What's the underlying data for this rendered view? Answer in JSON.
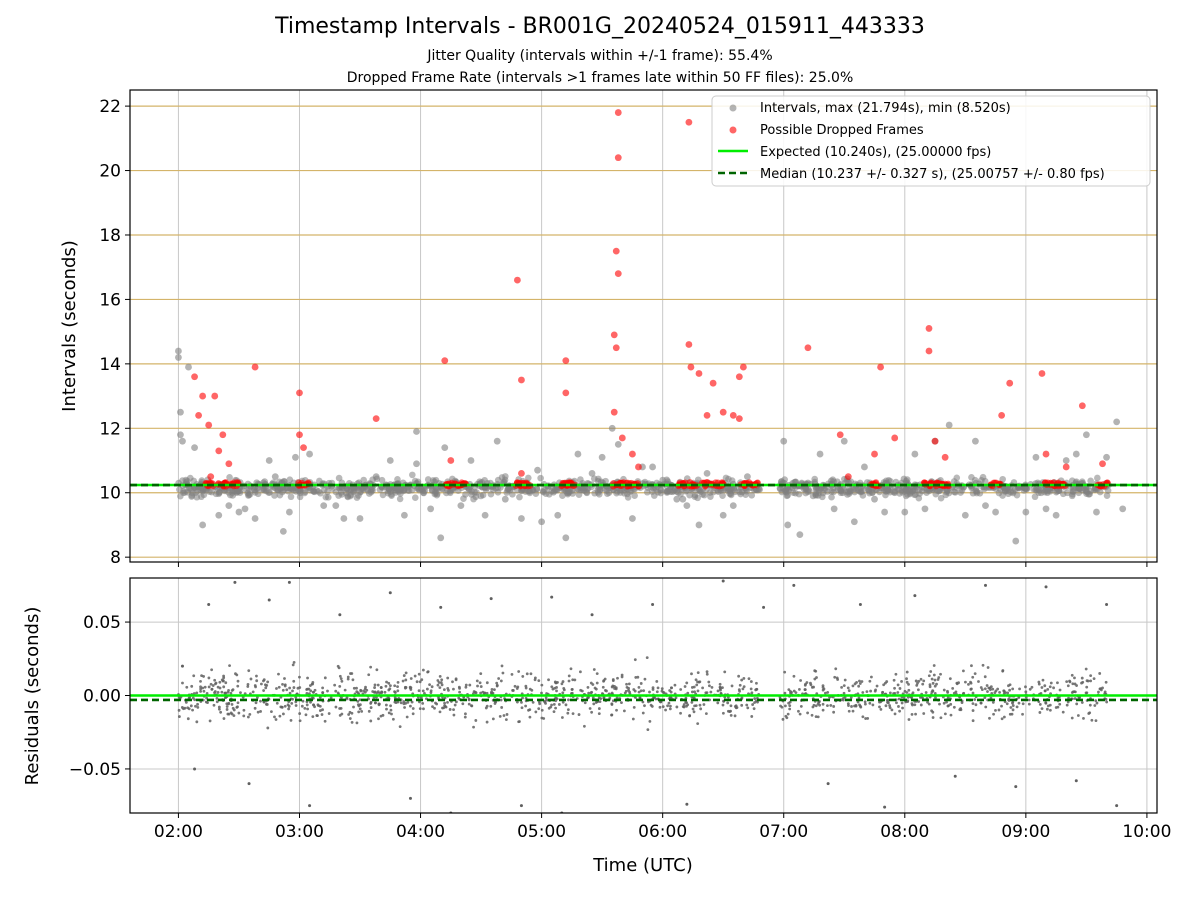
{
  "figure": {
    "title": "Timestamp Intervals - BR001G_20240524_015911_443333",
    "subtitle_1": "Jitter Quality (intervals within +/-1 frame): 55.4%",
    "subtitle_2": "Dropped Frame Rate (intervals >1 frames late within 50 FF files): 25.0%"
  },
  "colors": {
    "intervals": "#808080",
    "dropped": "#ff0000",
    "expected": "#00ee00",
    "median": "#006400",
    "hgrid_top": "#d4b46a",
    "grid": "#c8c8c8"
  },
  "chart_data": [
    {
      "type": "scatter",
      "ylabel": "Intervals (seconds)",
      "xlim": [
        "01:36",
        "10:05"
      ],
      "ylim": [
        7.85,
        22.5
      ],
      "yticks": [
        8,
        10,
        12,
        14,
        16,
        18,
        20,
        22
      ],
      "ytick_labels": [
        "8",
        "10",
        "12",
        "14",
        "16",
        "18",
        "20",
        "22"
      ],
      "grid": true,
      "legend_position": "top-right",
      "legend": [
        "Intervals, max (21.794s), min (8.520s)",
        "Possible Dropped Frames",
        "Expected (10.240s), (25.00000 fps)",
        "Median (10.237 +/- 0.327 s), (25.00757 +/- 0.80 fps)"
      ],
      "series": [
        {
          "name": "Intervals, max (21.794s), min (8.520s)",
          "style": "points",
          "points": [
            [
              "02:00",
              14.4
            ],
            [
              "02:00",
              14.2
            ],
            [
              "02:01",
              12.5
            ],
            [
              "02:01",
              11.8
            ],
            [
              "02:02",
              11.6
            ],
            [
              "02:05",
              13.9
            ],
            [
              "02:08",
              11.4
            ],
            [
              "02:12",
              9.0
            ],
            [
              "02:20",
              9.3
            ],
            [
              "02:25",
              9.6
            ],
            [
              "02:30",
              9.4
            ],
            [
              "02:33",
              9.5
            ],
            [
              "02:38",
              9.2
            ],
            [
              "02:45",
              11.0
            ],
            [
              "02:48",
              10.5
            ],
            [
              "02:52",
              8.8
            ],
            [
              "02:55",
              9.4
            ],
            [
              "02:58",
              11.1
            ],
            [
              "03:05",
              11.2
            ],
            [
              "03:12",
              9.6
            ],
            [
              "03:18",
              9.6
            ],
            [
              "03:22",
              9.2
            ],
            [
              "03:30",
              9.2
            ],
            [
              "03:38",
              10.5
            ],
            [
              "03:45",
              11.0
            ],
            [
              "03:52",
              9.3
            ],
            [
              "03:58",
              10.9
            ],
            [
              "03:58",
              11.9
            ],
            [
              "04:05",
              9.5
            ],
            [
              "04:10",
              8.6
            ],
            [
              "04:12",
              11.4
            ],
            [
              "04:20",
              9.6
            ],
            [
              "04:25",
              11.0
            ],
            [
              "04:32",
              9.3
            ],
            [
              "04:38",
              11.6
            ],
            [
              "04:42",
              9.8
            ],
            [
              "04:50",
              9.2
            ],
            [
              "04:58",
              10.7
            ],
            [
              "05:00",
              9.1
            ],
            [
              "05:08",
              9.3
            ],
            [
              "05:12",
              8.6
            ],
            [
              "05:18",
              11.2
            ],
            [
              "05:25",
              10.6
            ],
            [
              "05:30",
              11.1
            ],
            [
              "05:35",
              12.0
            ],
            [
              "05:38",
              11.5
            ],
            [
              "05:45",
              9.2
            ],
            [
              "05:50",
              10.8
            ],
            [
              "05:55",
              10.8
            ],
            [
              "06:02",
              10.4
            ],
            [
              "06:07",
              9.8
            ],
            [
              "06:10",
              9.8
            ],
            [
              "06:12",
              9.6
            ],
            [
              "06:18",
              9.0
            ],
            [
              "06:22",
              10.6
            ],
            [
              "06:30",
              9.3
            ],
            [
              "06:35",
              9.6
            ],
            [
              "06:42",
              10.5
            ],
            [
              "06:48",
              10.1
            ],
            [
              "07:00",
              11.6
            ],
            [
              "07:02",
              9.0
            ],
            [
              "07:08",
              8.7
            ],
            [
              "07:12",
              10.3
            ],
            [
              "07:18",
              11.2
            ],
            [
              "07:25",
              9.5
            ],
            [
              "07:30",
              11.6
            ],
            [
              "07:35",
              9.1
            ],
            [
              "07:40",
              10.8
            ],
            [
              "07:45",
              9.8
            ],
            [
              "07:50",
              9.4
            ],
            [
              "07:55",
              10.0
            ],
            [
              "08:00",
              9.4
            ],
            [
              "08:05",
              11.2
            ],
            [
              "08:10",
              9.5
            ],
            [
              "08:15",
              11.6
            ],
            [
              "08:22",
              12.1
            ],
            [
              "08:30",
              9.3
            ],
            [
              "08:35",
              11.6
            ],
            [
              "08:40",
              9.6
            ],
            [
              "08:45",
              9.4
            ],
            [
              "08:50",
              10.2
            ],
            [
              "08:55",
              8.5
            ],
            [
              "09:00",
              9.4
            ],
            [
              "09:05",
              11.1
            ],
            [
              "09:10",
              9.5
            ],
            [
              "09:15",
              9.3
            ],
            [
              "09:20",
              11.0
            ],
            [
              "09:25",
              11.2
            ],
            [
              "09:30",
              11.8
            ],
            [
              "09:35",
              9.4
            ],
            [
              "09:40",
              11.1
            ],
            [
              "09:45",
              12.2
            ],
            [
              "09:48",
              9.5
            ]
          ]
        },
        {
          "name": "Possible Dropped Frames",
          "style": "points",
          "points": [
            [
              "02:08",
              13.6
            ],
            [
              "02:10",
              12.4
            ],
            [
              "02:12",
              13.0
            ],
            [
              "02:15",
              12.1
            ],
            [
              "02:18",
              13.0
            ],
            [
              "02:20",
              11.3
            ],
            [
              "02:22",
              11.8
            ],
            [
              "02:25",
              10.9
            ],
            [
              "02:38",
              13.9
            ],
            [
              "03:00",
              13.1
            ],
            [
              "03:00",
              11.8
            ],
            [
              "03:02",
              11.4
            ],
            [
              "03:38",
              12.3
            ],
            [
              "04:12",
              14.1
            ],
            [
              "04:15",
              11.0
            ],
            [
              "04:48",
              16.6
            ],
            [
              "04:50",
              13.5
            ],
            [
              "05:12",
              14.1
            ],
            [
              "05:12",
              13.1
            ],
            [
              "05:36",
              12.5
            ],
            [
              "05:36",
              14.9
            ],
            [
              "05:37",
              14.5
            ],
            [
              "05:37",
              17.5
            ],
            [
              "05:38",
              16.8
            ],
            [
              "05:38",
              20.4
            ],
            [
              "05:38",
              21.8
            ],
            [
              "05:40",
              11.7
            ],
            [
              "05:45",
              11.2
            ],
            [
              "06:13",
              21.5
            ],
            [
              "06:13",
              14.6
            ],
            [
              "06:14",
              13.9
            ],
            [
              "06:18",
              13.7
            ],
            [
              "06:22",
              12.4
            ],
            [
              "06:25",
              13.4
            ],
            [
              "06:30",
              12.5
            ],
            [
              "06:35",
              12.4
            ],
            [
              "06:38",
              13.6
            ],
            [
              "06:40",
              13.9
            ],
            [
              "06:38",
              12.3
            ],
            [
              "07:12",
              14.5
            ],
            [
              "07:28",
              11.8
            ],
            [
              "07:45",
              11.2
            ],
            [
              "07:48",
              13.9
            ],
            [
              "07:55",
              11.7
            ],
            [
              "08:12",
              15.1
            ],
            [
              "08:12",
              14.4
            ],
            [
              "08:15",
              11.6
            ],
            [
              "08:20",
              11.1
            ],
            [
              "08:48",
              12.4
            ],
            [
              "08:52",
              13.4
            ],
            [
              "09:08",
              13.7
            ],
            [
              "09:10",
              11.2
            ],
            [
              "09:20",
              10.8
            ],
            [
              "09:28",
              12.7
            ],
            [
              "09:38",
              10.9
            ],
            [
              "02:16",
              10.5
            ],
            [
              "04:50",
              10.6
            ],
            [
              "05:48",
              10.8
            ],
            [
              "07:32",
              10.5
            ]
          ]
        },
        {
          "name": "Expected (10.240s), (25.00000 fps)",
          "style": "solid-line",
          "y": 10.24
        },
        {
          "name": "Median (10.237 +/- 0.327 s), (25.00757 +/- 0.80 fps)",
          "style": "dashed-line",
          "y": 10.237
        }
      ]
    },
    {
      "type": "scatter",
      "xlabel": "Time (UTC)",
      "ylabel": "Residuals (seconds)",
      "xlim": [
        "01:36",
        "10:05"
      ],
      "ylim": [
        -0.08,
        0.08
      ],
      "xticks": [
        "02:00",
        "03:00",
        "04:00",
        "05:00",
        "06:00",
        "07:00",
        "08:00",
        "09:00",
        "10:00"
      ],
      "yticks": [
        -0.05,
        0.0,
        0.05
      ],
      "ytick_labels": [
        "−0.05",
        "0.00",
        "0.05"
      ],
      "grid": true,
      "series": [
        {
          "name": "Residuals",
          "style": "points",
          "points": [
            [
              "02:02",
              0.02
            ],
            [
              "02:08",
              -0.05
            ],
            [
              "02:15",
              0.062
            ],
            [
              "02:28",
              0.077
            ],
            [
              "02:35",
              -0.06
            ],
            [
              "02:45",
              0.065
            ],
            [
              "02:55",
              0.077
            ],
            [
              "03:05",
              -0.075
            ],
            [
              "03:20",
              0.055
            ],
            [
              "03:45",
              0.07
            ],
            [
              "03:55",
              -0.07
            ],
            [
              "04:10",
              0.06
            ],
            [
              "04:15",
              -0.08
            ],
            [
              "04:35",
              0.066
            ],
            [
              "04:50",
              -0.075
            ],
            [
              "05:05",
              0.067
            ],
            [
              "05:10",
              -0.08
            ],
            [
              "05:25",
              0.055
            ],
            [
              "05:55",
              0.062
            ],
            [
              "06:12",
              -0.074
            ],
            [
              "06:30",
              0.078
            ],
            [
              "06:50",
              0.06
            ],
            [
              "07:05",
              0.075
            ],
            [
              "07:22",
              -0.06
            ],
            [
              "07:38",
              0.062
            ],
            [
              "07:50",
              -0.076
            ],
            [
              "08:05",
              0.068
            ],
            [
              "08:25",
              -0.055
            ],
            [
              "08:40",
              0.075
            ],
            [
              "08:55",
              -0.062
            ],
            [
              "09:10",
              0.074
            ],
            [
              "09:25",
              -0.058
            ],
            [
              "09:40",
              0.062
            ],
            [
              "09:45",
              -0.075
            ]
          ]
        },
        {
          "name": "Expected",
          "style": "solid-line",
          "y": 0.0
        },
        {
          "name": "Median",
          "style": "dashed-line",
          "y": -0.003
        }
      ]
    }
  ]
}
